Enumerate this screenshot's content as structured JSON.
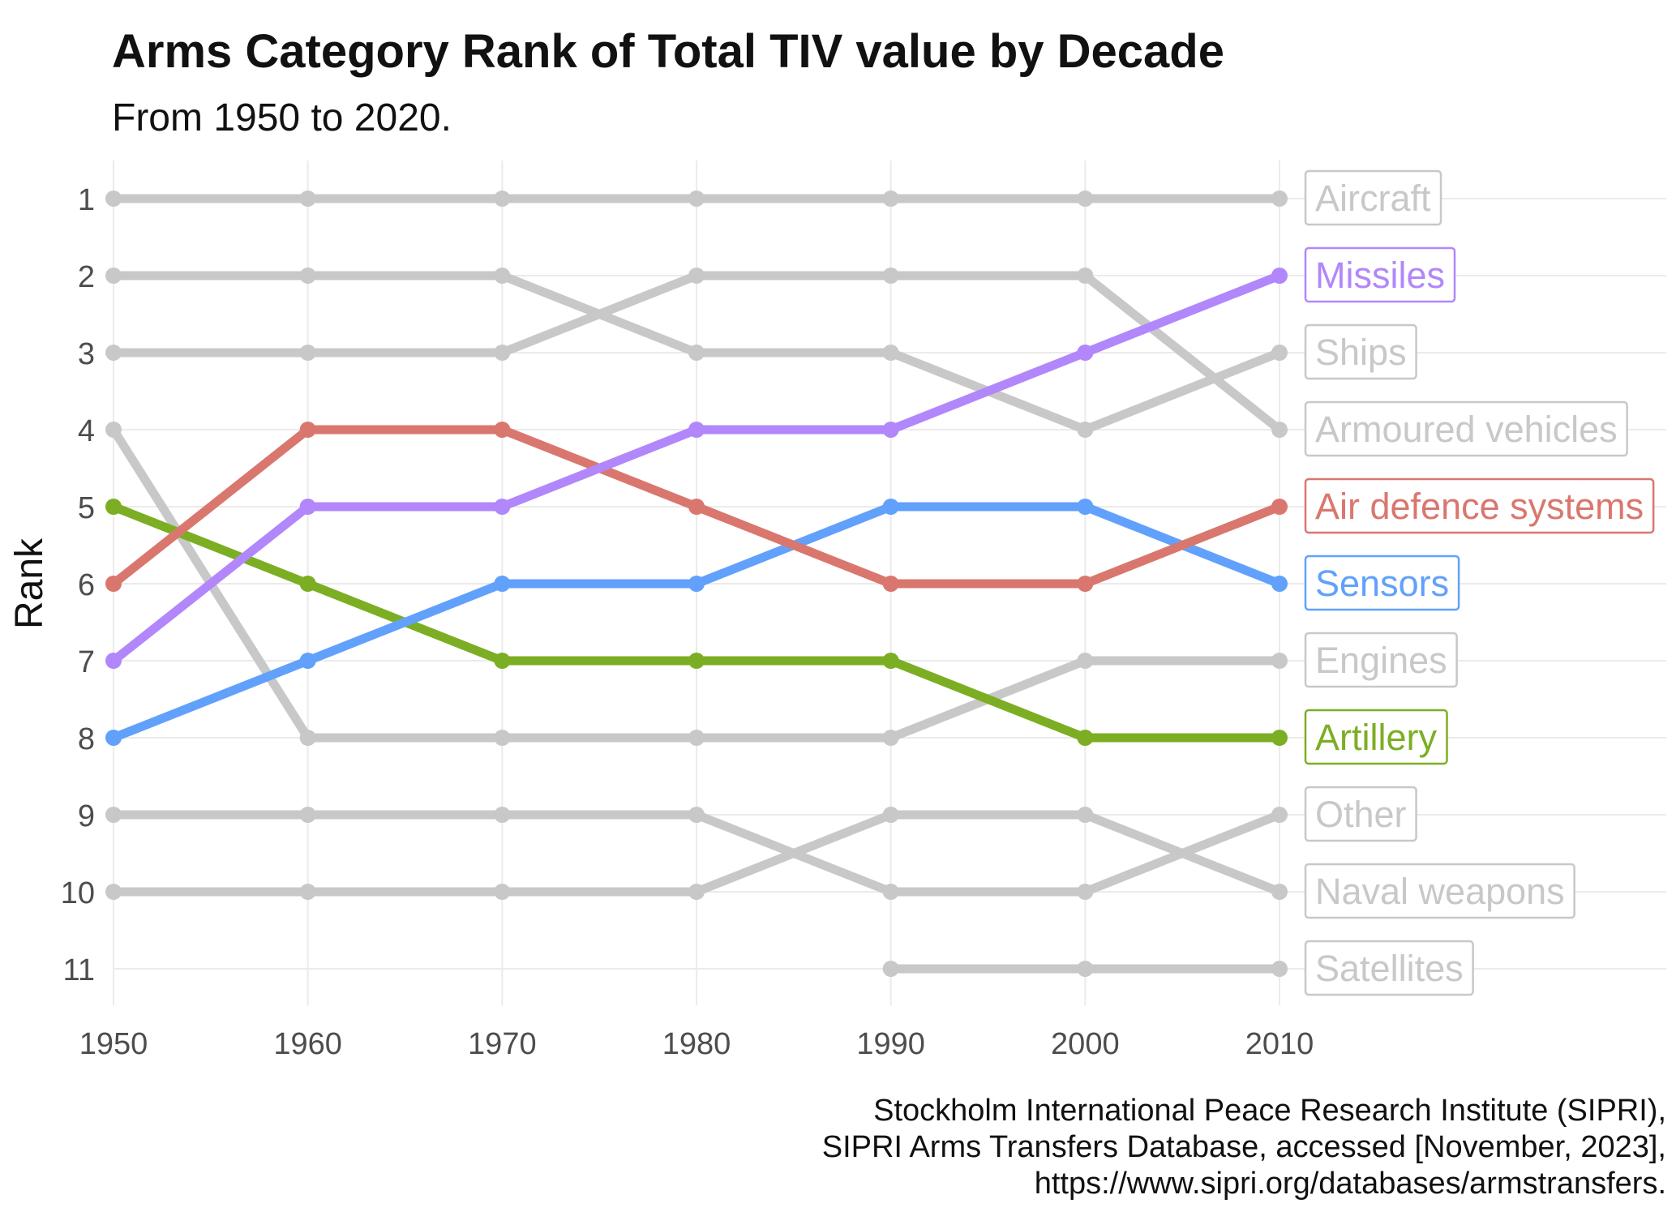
{
  "chart_data": {
    "type": "line",
    "title": "Arms Category Rank of Total TIV value by Decade",
    "subtitle": "From 1950 to 2020.",
    "ylabel": "Rank",
    "xlabel": "",
    "x": [
      1950,
      1960,
      1970,
      1980,
      1990,
      2000,
      2010
    ],
    "x_ticks": [
      "1950",
      "1960",
      "1970",
      "1980",
      "1990",
      "2000",
      "2010"
    ],
    "y_ticks": [
      "1",
      "2",
      "3",
      "4",
      "5",
      "6",
      "7",
      "8",
      "9",
      "10",
      "11"
    ],
    "ylim": [
      11,
      1
    ],
    "y_reversed": true,
    "grid": true,
    "legend": "direct labels at right end of lines",
    "muted_color": "#c8c8c8",
    "series": [
      {
        "name": "Aircraft",
        "values": [
          1,
          1,
          1,
          1,
          1,
          1,
          1
        ],
        "color": "#c8c8c8",
        "highlight": false
      },
      {
        "name": "Ships",
        "values": [
          2,
          2,
          2,
          3,
          3,
          4,
          3
        ],
        "color": "#c8c8c8",
        "highlight": false
      },
      {
        "name": "Armoured vehicles",
        "values": [
          3,
          3,
          3,
          2,
          2,
          2,
          4
        ],
        "color": "#c8c8c8",
        "highlight": false
      },
      {
        "name": "Engines",
        "values": [
          4,
          8,
          8,
          8,
          8,
          7,
          7
        ],
        "color": "#c8c8c8",
        "highlight": false
      },
      {
        "name": "Other",
        "values": [
          9,
          9,
          9,
          9,
          10,
          10,
          9
        ],
        "color": "#c8c8c8",
        "highlight": false
      },
      {
        "name": "Naval weapons",
        "values": [
          10,
          10,
          10,
          10,
          9,
          9,
          10
        ],
        "color": "#c8c8c8",
        "highlight": false
      },
      {
        "name": "Satellites",
        "values": [
          null,
          null,
          null,
          null,
          11,
          11,
          11
        ],
        "color": "#c8c8c8",
        "highlight": false
      },
      {
        "name": "Artillery",
        "values": [
          5,
          6,
          7,
          7,
          7,
          8,
          8
        ],
        "color": "#7cae24",
        "highlight": true
      },
      {
        "name": "Sensors",
        "values": [
          8,
          7,
          6,
          6,
          5,
          5,
          6
        ],
        "color": "#61a1fb",
        "highlight": true
      },
      {
        "name": "Air defence systems",
        "values": [
          6,
          4,
          4,
          5,
          6,
          6,
          5
        ],
        "color": "#d9776f",
        "highlight": true
      },
      {
        "name": "Missiles",
        "values": [
          7,
          5,
          5,
          4,
          4,
          3,
          2
        ],
        "color": "#b187fb",
        "highlight": true
      }
    ]
  },
  "caption": [
    "Stockholm International Peace Research Institute (SIPRI),",
    "SIPRI Arms Transfers Database, accessed [November, 2023],",
    "https://www.sipri.org/databases/armstransfers."
  ]
}
